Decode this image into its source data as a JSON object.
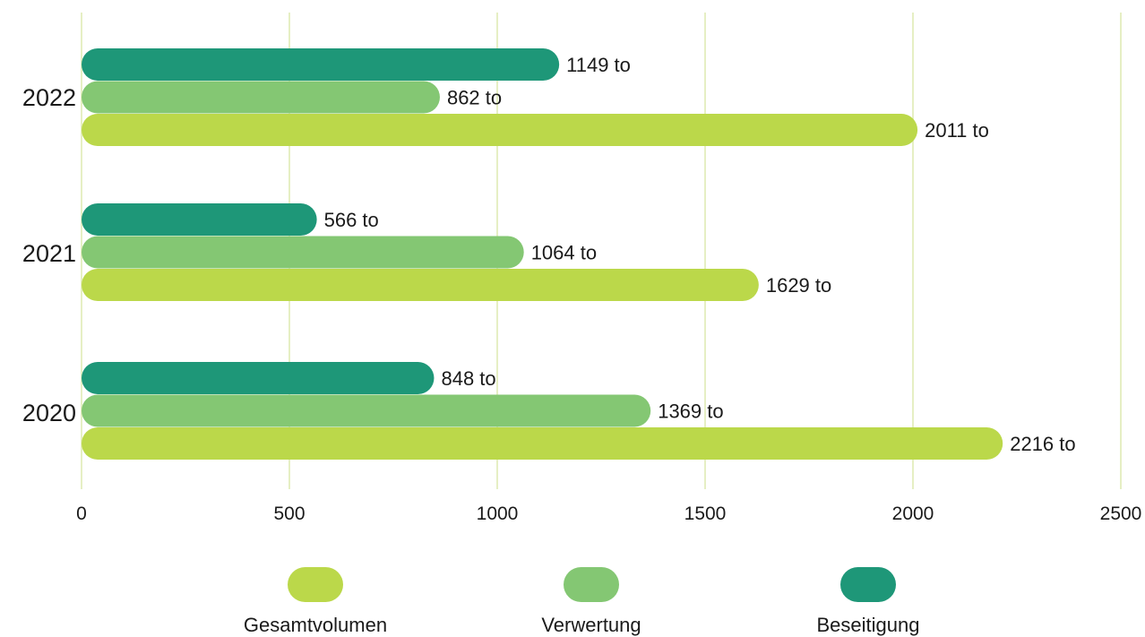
{
  "chart_data": {
    "type": "bar",
    "orientation": "horizontal",
    "categories": [
      "2022",
      "2021",
      "2020"
    ],
    "series": [
      {
        "name": "Beseitigung",
        "color": "#1e9778",
        "values": [
          1149,
          566,
          848
        ],
        "labels": [
          "1149 to",
          "566 to",
          "848 to"
        ]
      },
      {
        "name": "Verwertung",
        "color": "#84c773",
        "values": [
          862,
          1064,
          1369
        ],
        "labels": [
          "862 to",
          "1064 to",
          "1369 to"
        ]
      },
      {
        "name": "Gesamtvolumen",
        "color": "#bbd84a",
        "values": [
          2011,
          1629,
          2216
        ],
        "labels": [
          "2011 to",
          "1629 to",
          "2216 to"
        ]
      }
    ],
    "xlim": [
      0,
      2500
    ],
    "xticks": [
      0,
      500,
      1000,
      1500,
      2000,
      2500
    ],
    "xtick_labels": [
      "0",
      "500",
      "1000",
      "1500",
      "2000",
      "2500"
    ],
    "grid": true,
    "legend": {
      "placement": "bottom",
      "items": [
        {
          "name": "Gesamtvolumen",
          "color": "#bbd84a"
        },
        {
          "name": "Verwertung",
          "color": "#84c773"
        },
        {
          "name": "Beseitigung",
          "color": "#1e9778"
        }
      ]
    }
  }
}
